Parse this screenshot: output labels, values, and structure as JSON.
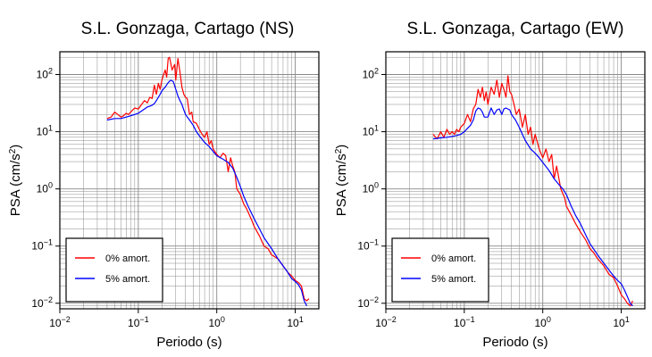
{
  "chart_data": [
    {
      "type": "line",
      "title": "S.L. Gonzaga, Cartago (NS)",
      "xlabel": "Periodo (s)",
      "ylabel": "PSA (cm/s²)",
      "xscale": "log",
      "yscale": "log",
      "xlim": [
        0.01,
        20
      ],
      "ylim": [
        0.008,
        250
      ],
      "grid": true,
      "legend_position": "bottom-left",
      "x_ticks": [
        {
          "value": 0.01,
          "base": "10",
          "exp": "−2"
        },
        {
          "value": 0.1,
          "base": "10",
          "exp": "−1"
        },
        {
          "value": 1,
          "base": "10",
          "exp": "0"
        },
        {
          "value": 10,
          "base": "10",
          "exp": "1"
        }
      ],
      "y_ticks": [
        {
          "value": 0.01,
          "base": "10",
          "exp": "−2"
        },
        {
          "value": 0.1,
          "base": "10",
          "exp": "−1"
        },
        {
          "value": 1,
          "base": "10",
          "exp": "0"
        },
        {
          "value": 10,
          "base": "10",
          "exp": "1"
        },
        {
          "value": 100,
          "base": "10",
          "exp": "2"
        }
      ],
      "series": [
        {
          "name": "0% amort.",
          "color": "#ff0000",
          "x": [
            0.04,
            0.045,
            0.05,
            0.055,
            0.06,
            0.065,
            0.07,
            0.075,
            0.08,
            0.09,
            0.1,
            0.11,
            0.12,
            0.13,
            0.14,
            0.15,
            0.16,
            0.17,
            0.18,
            0.19,
            0.2,
            0.21,
            0.22,
            0.23,
            0.24,
            0.25,
            0.27,
            0.29,
            0.3,
            0.32,
            0.34,
            0.36,
            0.38,
            0.4,
            0.42,
            0.45,
            0.48,
            0.5,
            0.55,
            0.6,
            0.65,
            0.7,
            0.75,
            0.8,
            0.85,
            0.9,
            1.0,
            1.1,
            1.2,
            1.3,
            1.4,
            1.5,
            1.6,
            1.7,
            1.8,
            2.0,
            2.2,
            2.4,
            2.6,
            2.8,
            3.0,
            3.5,
            4.0,
            4.5,
            5.0,
            6.0,
            7.0,
            8.0,
            9.0,
            10.0,
            11.0,
            12.0,
            13.0,
            14.0,
            15.0
          ],
          "values": [
            17,
            18,
            22,
            20,
            18,
            19,
            21,
            20,
            22,
            26,
            25,
            30,
            35,
            32,
            40,
            38,
            65,
            45,
            70,
            55,
            80,
            100,
            120,
            90,
            190,
            200,
            120,
            150,
            80,
            190,
            110,
            60,
            45,
            40,
            38,
            20,
            22,
            15,
            14,
            11,
            9,
            8,
            10,
            6,
            7,
            5,
            4.0,
            3.5,
            4.2,
            3.8,
            2.0,
            3.5,
            2.5,
            2.0,
            1.0,
            0.8,
            0.55,
            0.45,
            0.35,
            0.28,
            0.22,
            0.15,
            0.1,
            0.09,
            0.07,
            0.06,
            0.045,
            0.035,
            0.03,
            0.025,
            0.023,
            0.02,
            0.012,
            0.011,
            0.012
          ]
        },
        {
          "name": "5% amort.",
          "color": "#0000ff",
          "x": [
            0.04,
            0.05,
            0.06,
            0.07,
            0.08,
            0.09,
            0.1,
            0.11,
            0.12,
            0.13,
            0.14,
            0.15,
            0.16,
            0.17,
            0.18,
            0.19,
            0.2,
            0.22,
            0.24,
            0.26,
            0.28,
            0.3,
            0.32,
            0.34,
            0.36,
            0.38,
            0.4,
            0.45,
            0.5,
            0.55,
            0.6,
            0.7,
            0.8,
            0.9,
            1.0,
            1.2,
            1.4,
            1.6,
            1.8,
            2.0,
            2.2,
            2.5,
            3.0,
            3.5,
            4.0,
            5.0,
            6.0,
            7.0,
            8.0,
            9.0,
            10.0,
            11.0,
            12.0,
            13.0,
            14.0
          ],
          "values": [
            16,
            17,
            17,
            18,
            19,
            20,
            21,
            23,
            25,
            27,
            28,
            29,
            31,
            35,
            40,
            45,
            52,
            60,
            72,
            80,
            75,
            55,
            42,
            35,
            30,
            24,
            20,
            16,
            13,
            10,
            8.5,
            6.5,
            5.5,
            4.5,
            3.8,
            3.3,
            2.9,
            2.3,
            1.6,
            1.1,
            0.75,
            0.5,
            0.3,
            0.2,
            0.14,
            0.09,
            0.06,
            0.045,
            0.035,
            0.027,
            0.024,
            0.021,
            0.017,
            0.011,
            0.009
          ]
        }
      ]
    },
    {
      "type": "line",
      "title": "S.L. Gonzaga, Cartago (EW)",
      "xlabel": "Periodo (s)",
      "ylabel": "PSA (cm/s²)",
      "xscale": "log",
      "yscale": "log",
      "xlim": [
        0.01,
        20
      ],
      "ylim": [
        0.008,
        250
      ],
      "grid": true,
      "legend_position": "bottom-left",
      "x_ticks": [
        {
          "value": 0.01,
          "base": "10",
          "exp": "−2"
        },
        {
          "value": 0.1,
          "base": "10",
          "exp": "−1"
        },
        {
          "value": 1,
          "base": "10",
          "exp": "0"
        },
        {
          "value": 10,
          "base": "10",
          "exp": "1"
        }
      ],
      "y_ticks": [
        {
          "value": 0.01,
          "base": "10",
          "exp": "−2"
        },
        {
          "value": 0.1,
          "base": "10",
          "exp": "−1"
        },
        {
          "value": 1,
          "base": "10",
          "exp": "0"
        },
        {
          "value": 10,
          "base": "10",
          "exp": "1"
        },
        {
          "value": 100,
          "base": "10",
          "exp": "2"
        }
      ],
      "series": [
        {
          "name": "0% amort.",
          "color": "#ff0000",
          "x": [
            0.04,
            0.045,
            0.05,
            0.055,
            0.06,
            0.065,
            0.07,
            0.075,
            0.08,
            0.085,
            0.09,
            0.1,
            0.11,
            0.12,
            0.13,
            0.14,
            0.15,
            0.16,
            0.17,
            0.18,
            0.19,
            0.2,
            0.22,
            0.24,
            0.26,
            0.28,
            0.3,
            0.32,
            0.34,
            0.36,
            0.38,
            0.4,
            0.43,
            0.46,
            0.5,
            0.55,
            0.6,
            0.65,
            0.7,
            0.75,
            0.8,
            0.9,
            1.0,
            1.1,
            1.2,
            1.3,
            1.4,
            1.5,
            1.7,
            1.9,
            2.0,
            2.3,
            2.6,
            3.0,
            3.5,
            4.0,
            4.5,
            5.0,
            6.0,
            7.0,
            8.0,
            9.0,
            10.0,
            11.0,
            12.0,
            13.0,
            14.0
          ],
          "values": [
            9,
            7.5,
            10,
            8,
            11,
            9,
            10,
            9,
            11,
            10,
            12,
            14,
            20,
            15,
            25,
            30,
            55,
            40,
            60,
            35,
            50,
            30,
            60,
            45,
            80,
            40,
            70,
            55,
            40,
            95,
            50,
            45,
            30,
            20,
            25,
            12,
            20,
            9,
            12,
            6,
            9,
            5,
            3.5,
            5.0,
            3.0,
            4.0,
            1.5,
            2.5,
            1.0,
            0.7,
            0.5,
            0.35,
            0.25,
            0.18,
            0.13,
            0.09,
            0.075,
            0.06,
            0.045,
            0.032,
            0.028,
            0.02,
            0.014,
            0.012,
            0.01,
            0.009,
            0.011
          ]
        },
        {
          "name": "5% amort.",
          "color": "#0000ff",
          "x": [
            0.04,
            0.05,
            0.06,
            0.07,
            0.08,
            0.09,
            0.1,
            0.11,
            0.12,
            0.13,
            0.14,
            0.15,
            0.16,
            0.17,
            0.18,
            0.2,
            0.22,
            0.24,
            0.26,
            0.28,
            0.3,
            0.32,
            0.34,
            0.36,
            0.38,
            0.4,
            0.45,
            0.5,
            0.55,
            0.6,
            0.7,
            0.8,
            0.9,
            1.0,
            1.2,
            1.4,
            1.6,
            1.8,
            2.0,
            2.3,
            2.6,
            3.0,
            3.5,
            4.0,
            5.0,
            6.0,
            7.0,
            8.0,
            9.0,
            10.0,
            11.0,
            12.0,
            13.0,
            14.0
          ],
          "values": [
            7.5,
            7.8,
            8,
            8.3,
            8.6,
            9,
            10,
            11.5,
            13,
            16,
            23,
            26,
            25,
            22,
            18,
            18,
            26,
            20,
            24,
            25,
            20,
            25,
            26,
            25,
            24,
            20,
            16,
            12,
            9,
            7,
            5,
            4.2,
            3.5,
            2.9,
            2.1,
            1.5,
            1.2,
            1.0,
            0.8,
            0.5,
            0.35,
            0.25,
            0.16,
            0.11,
            0.07,
            0.05,
            0.038,
            0.03,
            0.025,
            0.022,
            0.017,
            0.013,
            0.01,
            0.009
          ]
        }
      ]
    }
  ]
}
